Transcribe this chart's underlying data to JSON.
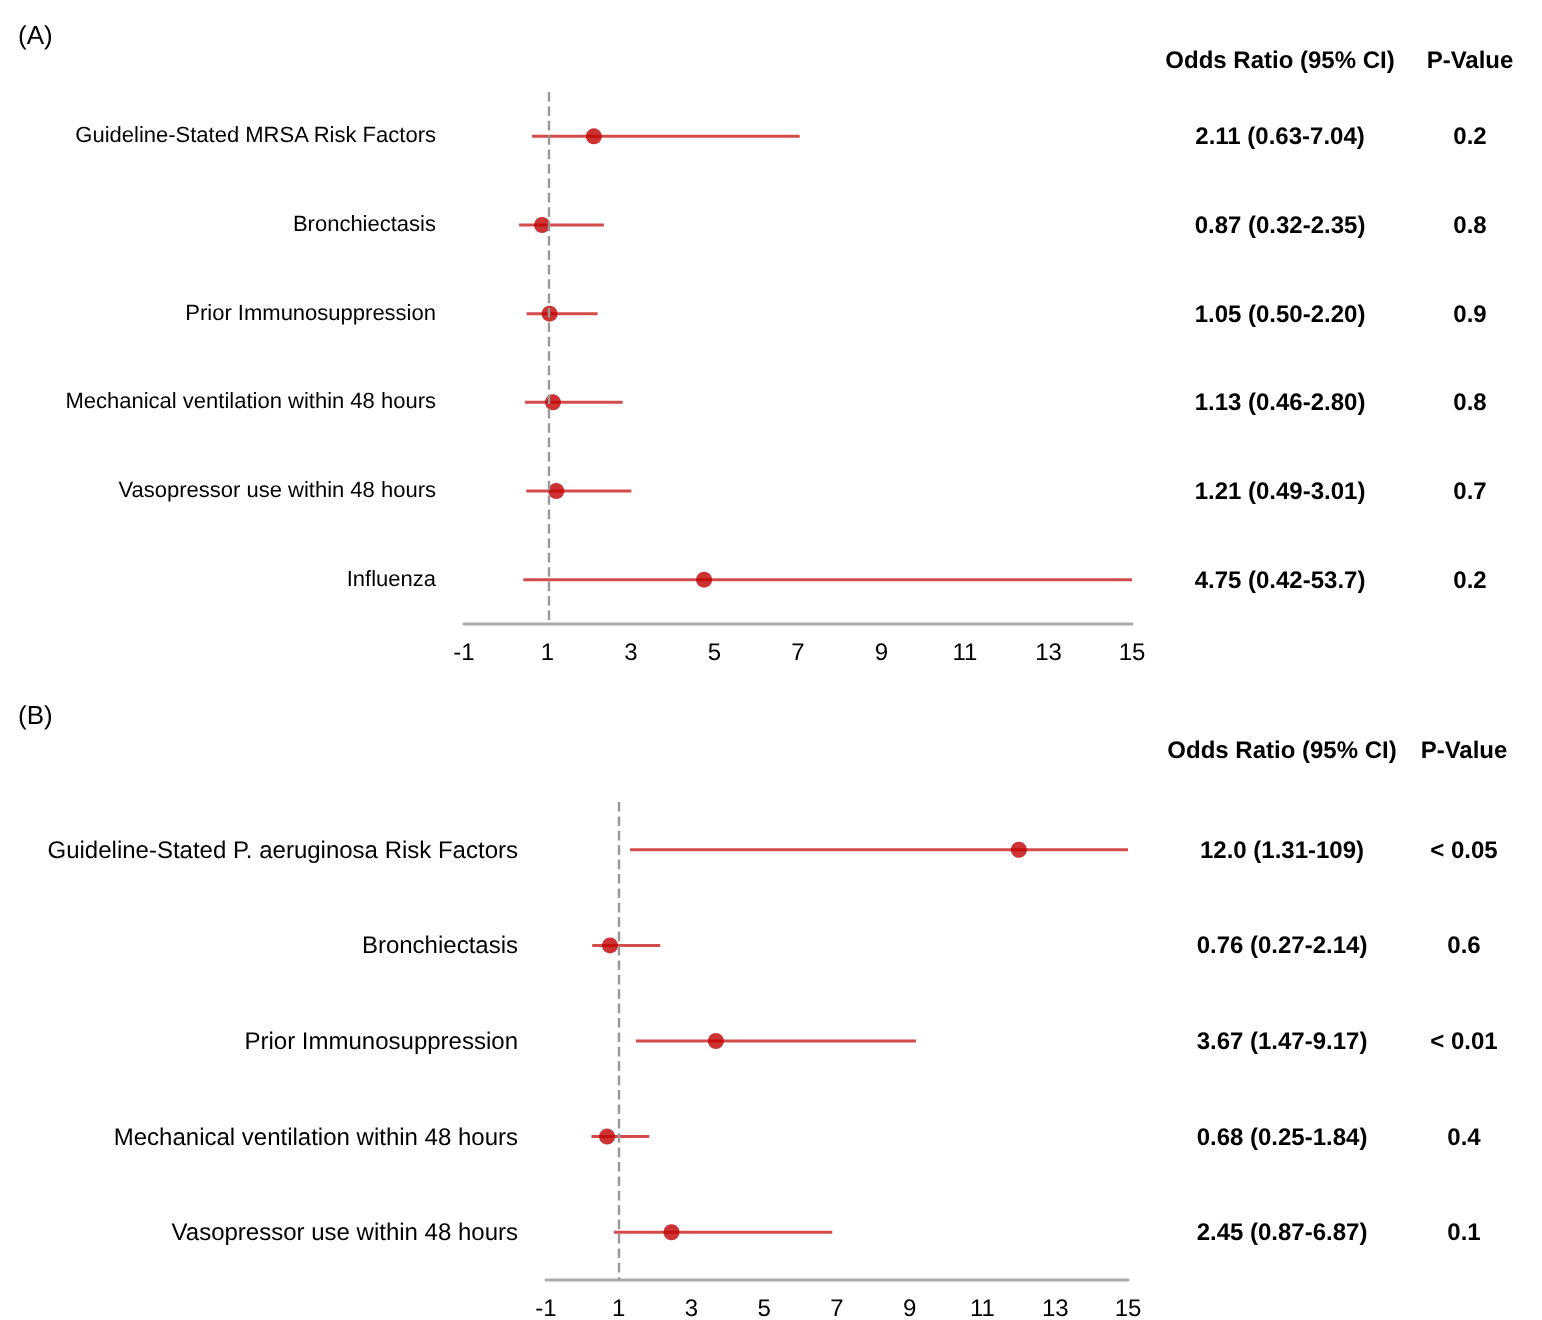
{
  "chart_data": [
    {
      "type": "scatter",
      "title": "(A)",
      "orientation": "horizontal",
      "categories": [
        "Guideline-Stated MRSA Risk Factors",
        "Bronchiectasis",
        "Prior Immunosuppression",
        "Mechanical ventilation within 48 hours",
        "Vasopressor use within 48 hours",
        "Influenza"
      ],
      "series": [
        {
          "color": "#c00000",
          "values": [
            2.11,
            0.87,
            1.05,
            1.13,
            1.21,
            4.75
          ],
          "errors": [
            [
              0.63,
              7.04
            ],
            [
              0.32,
              2.35
            ],
            [
              0.5,
              2.2
            ],
            [
              0.46,
              2.8
            ],
            [
              0.49,
              3.01
            ],
            [
              0.42,
              15
            ]
          ],
          "value_labels": [
            "2.11 (0.63-7.04)",
            "0.87 (0.32-2.35)",
            "1.05 (0.50-2.20)",
            "1.13 (0.46-2.80)",
            "1.21 (0.49-3.01)",
            "4.75 (0.42-53.7)"
          ]
        }
      ],
      "xlim": [
        -1,
        15
      ],
      "xticks": [
        -1,
        1,
        3,
        5,
        7,
        9,
        11,
        13,
        15
      ],
      "ref_lines": [
        {
          "axis": "x",
          "value": 1,
          "color": "#999999",
          "line_style": "dashed"
        }
      ],
      "annotations": [
        "Odds Ratio (95% CI)",
        "P-Value",
        "0.2",
        "0.8",
        "0.9",
        "0.8",
        "0.7",
        "0.2"
      ],
      "marker": "circle",
      "grid": false
    },
    {
      "type": "scatter",
      "title": "(B)",
      "orientation": "horizontal",
      "categories": [
        "Guideline-Stated P. aeruginosa Risk Factors",
        "Bronchiectasis",
        "Prior Immunosuppression",
        "Mechanical ventilation within 48 hours",
        "Vasopressor use within 48 hours"
      ],
      "series": [
        {
          "color": "#c00000",
          "values": [
            12.0,
            0.76,
            3.67,
            0.68,
            2.45
          ],
          "errors": [
            [
              1.31,
              15
            ],
            [
              0.27,
              2.14
            ],
            [
              1.47,
              9.17
            ],
            [
              0.25,
              1.84
            ],
            [
              0.87,
              6.87
            ]
          ],
          "value_labels": [
            "12.0 (1.31-109)",
            "0.76 (0.27-2.14)",
            "3.67 (1.47-9.17)",
            "0.68 (0.25-1.84)",
            "2.45 (0.87-6.87)"
          ]
        }
      ],
      "xlim": [
        -1,
        15
      ],
      "xticks": [
        -1,
        1,
        3,
        5,
        7,
        9,
        11,
        13,
        15
      ],
      "ref_lines": [
        {
          "axis": "x",
          "value": 1,
          "color": "#999999",
          "line_style": "dashed"
        }
      ],
      "annotations": [
        "Odds Ratio (95% CI)",
        "P-Value",
        "< 0.05",
        "0.6",
        "< 0.01",
        "0.4",
        "0.1"
      ],
      "marker": "circle",
      "grid": false
    }
  ]
}
